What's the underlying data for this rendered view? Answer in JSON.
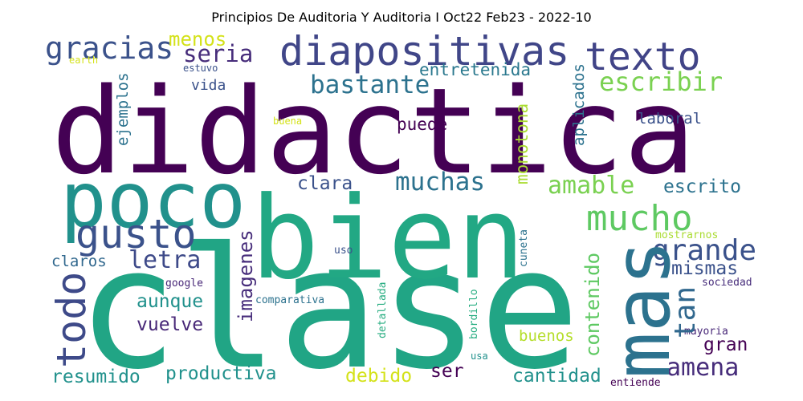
{
  "title": "Principios De Auditoria Y Auditoria I Oct22 Feb23 - 2022-10",
  "colors": {
    "dark_purple": "#440154",
    "indigo": "#3b528b",
    "blue": "#2c728e",
    "teal": "#21918c",
    "green": "#27ad81",
    "light_green": "#5ec962",
    "yellow_green": "#aadc32",
    "yellow": "#d4e21a",
    "purple": "#482878"
  },
  "words": [
    {
      "text": "didactica",
      "color": "#440154"
    },
    {
      "text": "clase",
      "color": "#21a585"
    },
    {
      "text": "bien",
      "color": "#22a884"
    },
    {
      "text": "poco",
      "color": "#21918c"
    },
    {
      "text": "mas",
      "color": "#2c728e"
    },
    {
      "text": "diapositivas",
      "color": "#404688"
    },
    {
      "text": "texto",
      "color": "#414487"
    },
    {
      "text": "gracias",
      "color": "#3b528b"
    },
    {
      "text": "gusto",
      "color": "#3b528b"
    },
    {
      "text": "todo",
      "color": "#3e4a89"
    },
    {
      "text": "mucho",
      "color": "#5ec962"
    },
    {
      "text": "grande",
      "color": "#3b528b"
    },
    {
      "text": "bastante",
      "color": "#2c728e"
    },
    {
      "text": "escribir",
      "color": "#7ad151"
    },
    {
      "text": "seria",
      "color": "#472d7b"
    },
    {
      "text": "menos",
      "color": "#d4e21a"
    },
    {
      "text": "muchas",
      "color": "#2c728e"
    },
    {
      "text": "amable",
      "color": "#7ad151"
    },
    {
      "text": "escrito",
      "color": "#2c728e"
    },
    {
      "text": "letra",
      "color": "#3e4a89"
    },
    {
      "text": "puede",
      "color": "#440154"
    },
    {
      "text": "clara",
      "color": "#3b528b"
    },
    {
      "text": "amena",
      "color": "#472d7b"
    },
    {
      "text": "tan",
      "color": "#31688e"
    },
    {
      "text": "mismas",
      "color": "#3b528b"
    },
    {
      "text": "entretenida",
      "color": "#2a788e"
    },
    {
      "text": "monotona",
      "color": "#aadc32"
    },
    {
      "text": "aplicados",
      "color": "#2c728e"
    },
    {
      "text": "laboral",
      "color": "#3b528b"
    },
    {
      "text": "vida",
      "color": "#3b528b"
    },
    {
      "text": "ejemplos",
      "color": "#2c728e"
    },
    {
      "text": "imagenes",
      "color": "#472d7b"
    },
    {
      "text": "aunque",
      "color": "#21918c"
    },
    {
      "text": "vuelve",
      "color": "#482878"
    },
    {
      "text": "contenido",
      "color": "#5ec962"
    },
    {
      "text": "claros",
      "color": "#31688e"
    },
    {
      "text": "resumido",
      "color": "#21918c"
    },
    {
      "text": "productiva",
      "color": "#21918c"
    },
    {
      "text": "debido",
      "color": "#d4e21a"
    },
    {
      "text": "ser",
      "color": "#440154"
    },
    {
      "text": "cantidad",
      "color": "#21918c"
    },
    {
      "text": "buenos",
      "color": "#b5de2b"
    },
    {
      "text": "gran",
      "color": "#440154"
    },
    {
      "text": "earth",
      "color": "#d4e21a"
    },
    {
      "text": "estuvo",
      "color": "#3b528b"
    },
    {
      "text": "buena",
      "color": "#d4e21a"
    },
    {
      "text": "google",
      "color": "#482878"
    },
    {
      "text": "comparativa",
      "color": "#2c728e"
    },
    {
      "text": "uso",
      "color": "#3b528b"
    },
    {
      "text": "cuneta",
      "color": "#2c728e"
    },
    {
      "text": "mostrarnos",
      "color": "#aadc32"
    },
    {
      "text": "sociedad",
      "color": "#472d7b"
    },
    {
      "text": "detallada",
      "color": "#27ad81"
    },
    {
      "text": "mayoria",
      "color": "#482878"
    },
    {
      "text": "bordillo",
      "color": "#27ad81"
    },
    {
      "text": "usa",
      "color": "#21918c"
    },
    {
      "text": "entiende",
      "color": "#440154"
    }
  ]
}
